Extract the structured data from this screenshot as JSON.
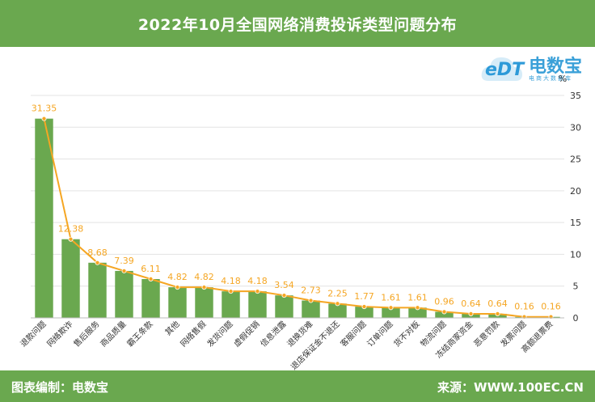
{
  "header": {
    "title": "2022年10月全国网络消费投诉类型问题分布"
  },
  "logo": {
    "name": "电数宝",
    "tagline": "电商大数据库",
    "mark": "eDT"
  },
  "footer": {
    "left": "图表编制：电数宝",
    "right": "来源：WWW.100EC.CN"
  },
  "colors": {
    "bar": "#6aa84f",
    "line": "#f5a623",
    "label": "#f5a623",
    "header_bg": "#6aa84f"
  },
  "chart_data": {
    "type": "bar",
    "categories": [
      "退款问题",
      "网络欺诈",
      "售后服务",
      "商品质量",
      "霸王条款",
      "其他",
      "网络售假",
      "发货问题",
      "虚假促销",
      "信息泄露",
      "退换货难",
      "退店保证金不退还",
      "客服问题",
      "订单问题",
      "货不对板",
      "物流问题",
      "冻结商家资金",
      "恶意罚款",
      "发票问题",
      "高额退票费"
    ],
    "values": [
      31.35,
      12.38,
      8.68,
      7.39,
      6.11,
      4.82,
      4.82,
      4.18,
      4.18,
      3.54,
      2.73,
      2.25,
      1.77,
      1.61,
      1.61,
      0.96,
      0.64,
      0.64,
      0.16,
      0.16
    ],
    "value_labels": [
      "31.35",
      "12.38",
      "8.68",
      "7.39",
      "6.11",
      "4.82",
      "4.82",
      "4.18",
      "4.18",
      "3.54",
      "2.73",
      "2.25",
      "1.77",
      "1.61",
      "1.61",
      "0.96",
      "0.64",
      "0.64",
      "0.16",
      "0.16"
    ],
    "line_overlay": true,
    "yunit": "%",
    "ylim": [
      0,
      35
    ],
    "yticks": [
      "0",
      "5",
      "10",
      "15",
      "20",
      "25",
      "30",
      "35"
    ],
    "grid": true,
    "yaxis_position": "right"
  }
}
